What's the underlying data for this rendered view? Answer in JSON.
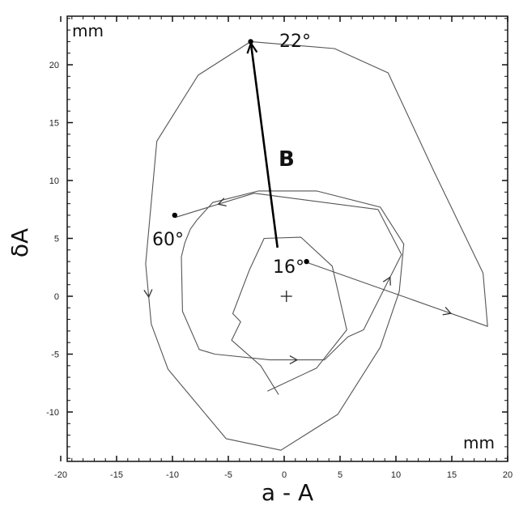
{
  "chart_data": {
    "type": "line",
    "xlabel": "a - A",
    "ylabel": "δA",
    "x_unit": "mm",
    "y_unit": "mm",
    "xlim": [
      -20,
      20
    ],
    "ylim": [
      -14,
      24
    ],
    "xticks": [
      -20,
      -15,
      -10,
      -5,
      0,
      5,
      10,
      15,
      20
    ],
    "yticks": [
      -10,
      -5,
      0,
      5,
      10,
      15,
      20
    ],
    "grid": false,
    "series": [
      {
        "points": [
          [
            1.8,
            3.0
          ],
          [
            18.2,
            -2.6
          ],
          [
            17.8,
            2.0
          ],
          [
            13.4,
            10.8
          ],
          [
            9.3,
            19.3
          ],
          [
            4.5,
            21.4
          ],
          [
            -3.0,
            22.0
          ],
          [
            -7.7,
            19.1
          ],
          [
            -11.4,
            13.4
          ],
          [
            -12.4,
            2.8
          ],
          [
            -11.9,
            -2.4
          ],
          [
            -10.4,
            -6.3
          ],
          [
            -5.2,
            -12.3
          ],
          [
            -0.3,
            -13.3
          ],
          [
            4.8,
            -10.2
          ],
          [
            8.6,
            -4.4
          ],
          [
            10.3,
            0.4
          ],
          [
            10.7,
            4.5
          ],
          [
            8.6,
            7.7
          ],
          [
            2.9,
            9.1
          ],
          [
            -2.3,
            9.1
          ],
          [
            -6.4,
            8.1
          ],
          [
            -7.8,
            6.6
          ],
          [
            -8.4,
            5.8
          ],
          [
            -8.9,
            4.6
          ],
          [
            -9.2,
            3.4
          ],
          [
            -9.1,
            -1.3
          ],
          [
            -7.6,
            -4.6
          ],
          [
            -6.2,
            -5.0
          ],
          [
            -1.3,
            -5.5
          ],
          [
            3.6,
            -5.5
          ],
          [
            5.7,
            -3.5
          ],
          [
            7.1,
            -2.9
          ],
          [
            10.5,
            3.6
          ],
          [
            8.4,
            7.5
          ],
          [
            -2.7,
            8.9
          ],
          [
            -9.8,
            6.8
          ]
        ]
      },
      {
        "points": [
          [
            -0.5,
            -8.5
          ],
          [
            -2.1,
            -6.0
          ],
          [
            -4.7,
            -3.8
          ],
          [
            -3.9,
            -2.2
          ],
          [
            -4.6,
            -1.5
          ],
          [
            -3.1,
            2.3
          ],
          [
            -1.8,
            5.0
          ],
          [
            1.5,
            5.1
          ],
          [
            4.3,
            2.6
          ],
          [
            5.6,
            -2.9
          ],
          [
            2.9,
            -6.2
          ],
          [
            -1.5,
            -8.2
          ]
        ]
      }
    ],
    "arrow": {
      "from": [
        -0.6,
        4.2
      ],
      "to": [
        -3.0,
        22.0
      ],
      "label": "B"
    },
    "center_marker": [
      0.2,
      0.0
    ],
    "annotations": [
      {
        "label": "22°",
        "x": -3.0,
        "y": 22.0
      },
      {
        "label": "60°",
        "x": -9.8,
        "y": 7.0
      },
      {
        "label": "16°",
        "x": 2.0,
        "y": 3.0
      }
    ]
  }
}
